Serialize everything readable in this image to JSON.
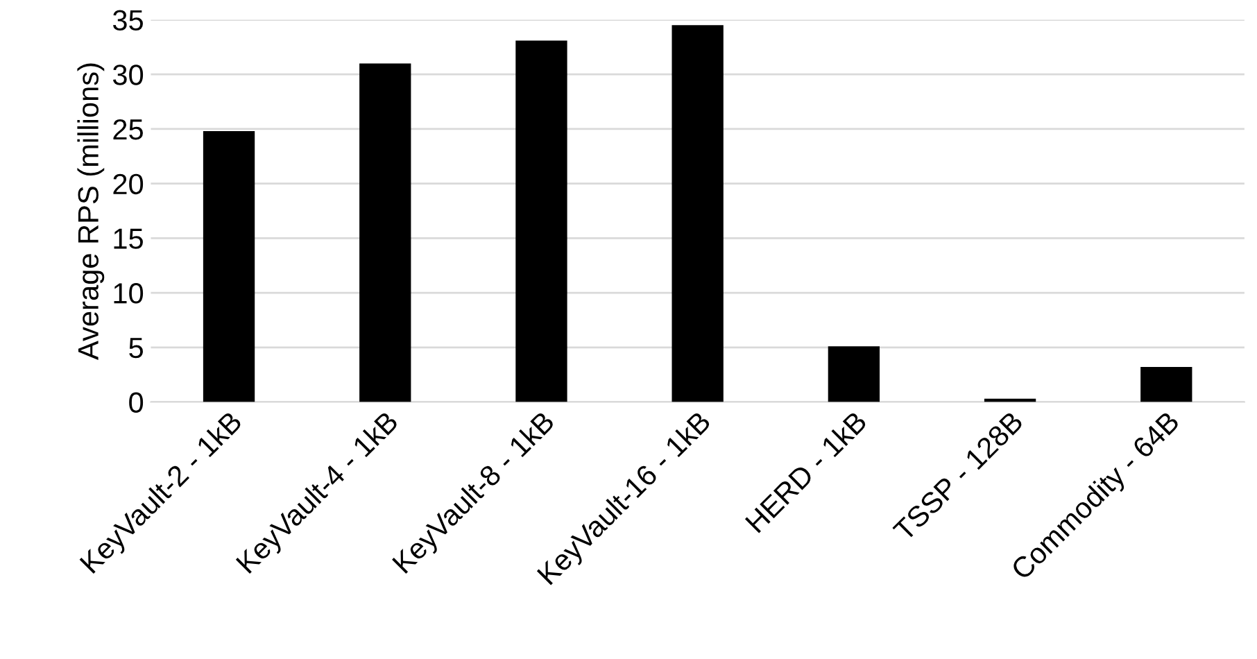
{
  "chart_data": {
    "type": "bar",
    "ylabel": "Average RPS (millions)",
    "categories": [
      "KeyVault-2 - 1kB",
      "KeyVault-4 - 1kB",
      "KeyVault-8 - 1kB",
      "KeyVault-16 - 1kB",
      "HERD - 1kB",
      "TSSP - 128B",
      "Commodity - 64B"
    ],
    "values": [
      24.8,
      31.0,
      33.1,
      34.5,
      5.1,
      0.3,
      3.2
    ],
    "color": "#000000",
    "ylim": [
      0,
      35
    ],
    "yticks": [
      0,
      5,
      10,
      15,
      20,
      25,
      30,
      35
    ],
    "grid": "y",
    "legend": false
  }
}
